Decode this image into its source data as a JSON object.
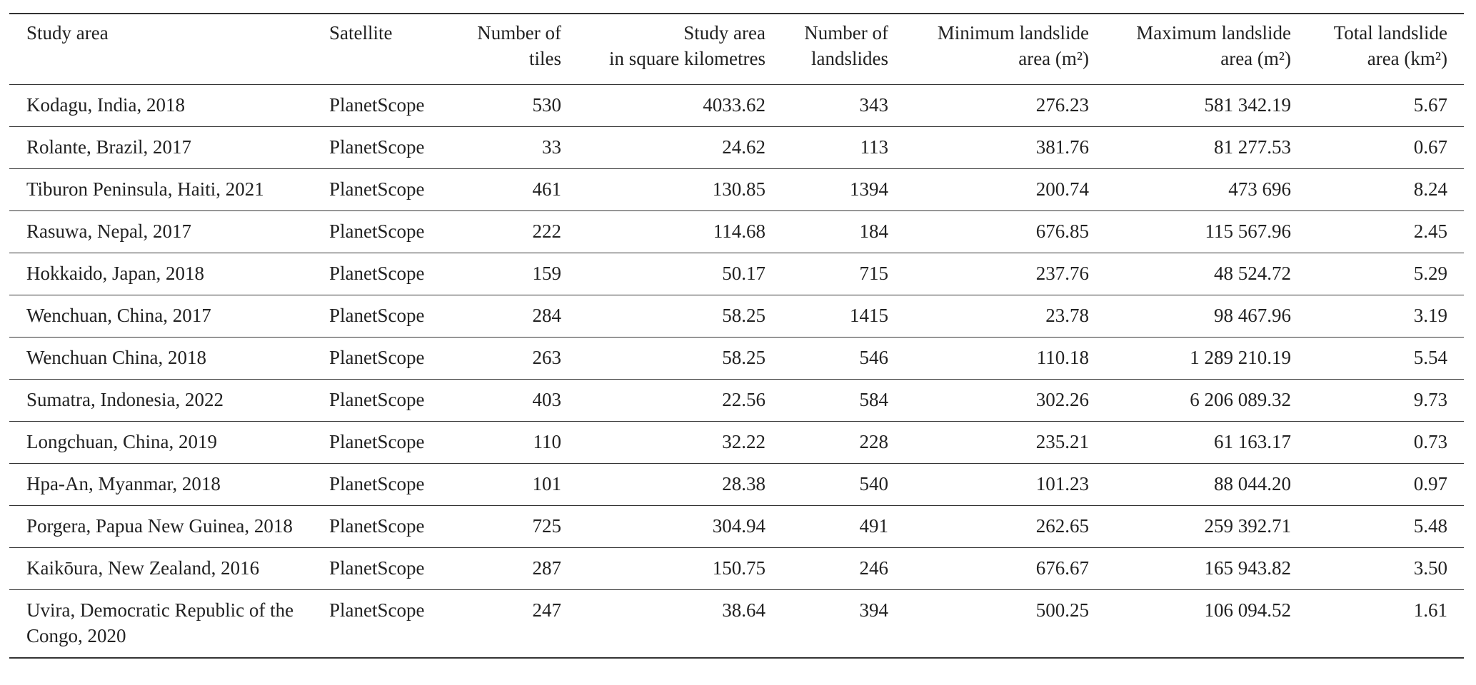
{
  "table": {
    "header": [
      [
        "Study area"
      ],
      [
        "Satellite"
      ],
      [
        "Number of",
        "tiles"
      ],
      [
        "Study area",
        "in square kilometres"
      ],
      [
        "Number of",
        "landslides"
      ],
      [
        "Minimum landslide",
        "area (m²)"
      ],
      [
        "Maximum landslide",
        "area (m²)"
      ],
      [
        "Total landslide",
        "area (km²)"
      ]
    ],
    "rows": [
      [
        "Kodagu, India, 2018",
        "PlanetScope",
        "530",
        "4033.62",
        "343",
        "276.23",
        "581 342.19",
        "5.67"
      ],
      [
        "Rolante, Brazil, 2017",
        "PlanetScope",
        "33",
        "24.62",
        "113",
        "381.76",
        "81 277.53",
        "0.67"
      ],
      [
        "Tiburon Peninsula, Haiti, 2021",
        "PlanetScope",
        "461",
        "130.85",
        "1394",
        "200.74",
        "473 696",
        "8.24"
      ],
      [
        "Rasuwa, Nepal, 2017",
        "PlanetScope",
        "222",
        "114.68",
        "184",
        "676.85",
        "115 567.96",
        "2.45"
      ],
      [
        "Hokkaido, Japan, 2018",
        "PlanetScope",
        "159",
        "50.17",
        "715",
        "237.76",
        "48 524.72",
        "5.29"
      ],
      [
        "Wenchuan, China, 2017",
        "PlanetScope",
        "284",
        "58.25",
        "1415",
        "23.78",
        "98 467.96",
        "3.19"
      ],
      [
        "Wenchuan China, 2018",
        "PlanetScope",
        "263",
        "58.25",
        "546",
        "110.18",
        "1 289 210.19",
        "5.54"
      ],
      [
        "Sumatra, Indonesia, 2022",
        "PlanetScope",
        "403",
        "22.56",
        "584",
        "302.26",
        "6 206 089.32",
        "9.73"
      ],
      [
        "Longchuan, China, 2019",
        "PlanetScope",
        "110",
        "32.22",
        "228",
        "235.21",
        "61 163.17",
        "0.73"
      ],
      [
        "Hpa-An, Myanmar, 2018",
        "PlanetScope",
        "101",
        "28.38",
        "540",
        "101.23",
        "88 044.20",
        "0.97"
      ],
      [
        "Porgera, Papua New Guinea, 2018",
        "PlanetScope",
        "725",
        "304.94",
        "491",
        "262.65",
        "259 392.71",
        "5.48"
      ],
      [
        "Kaikōura, New Zealand, 2016",
        "PlanetScope",
        "287",
        "150.75",
        "246",
        "676.67",
        "165 943.82",
        "3.50"
      ],
      [
        "Uvira, Democratic Republic of the Congo, 2020",
        "PlanetScope",
        "247",
        "38.64",
        "394",
        "500.25",
        "106 094.52",
        "1.61"
      ]
    ]
  }
}
